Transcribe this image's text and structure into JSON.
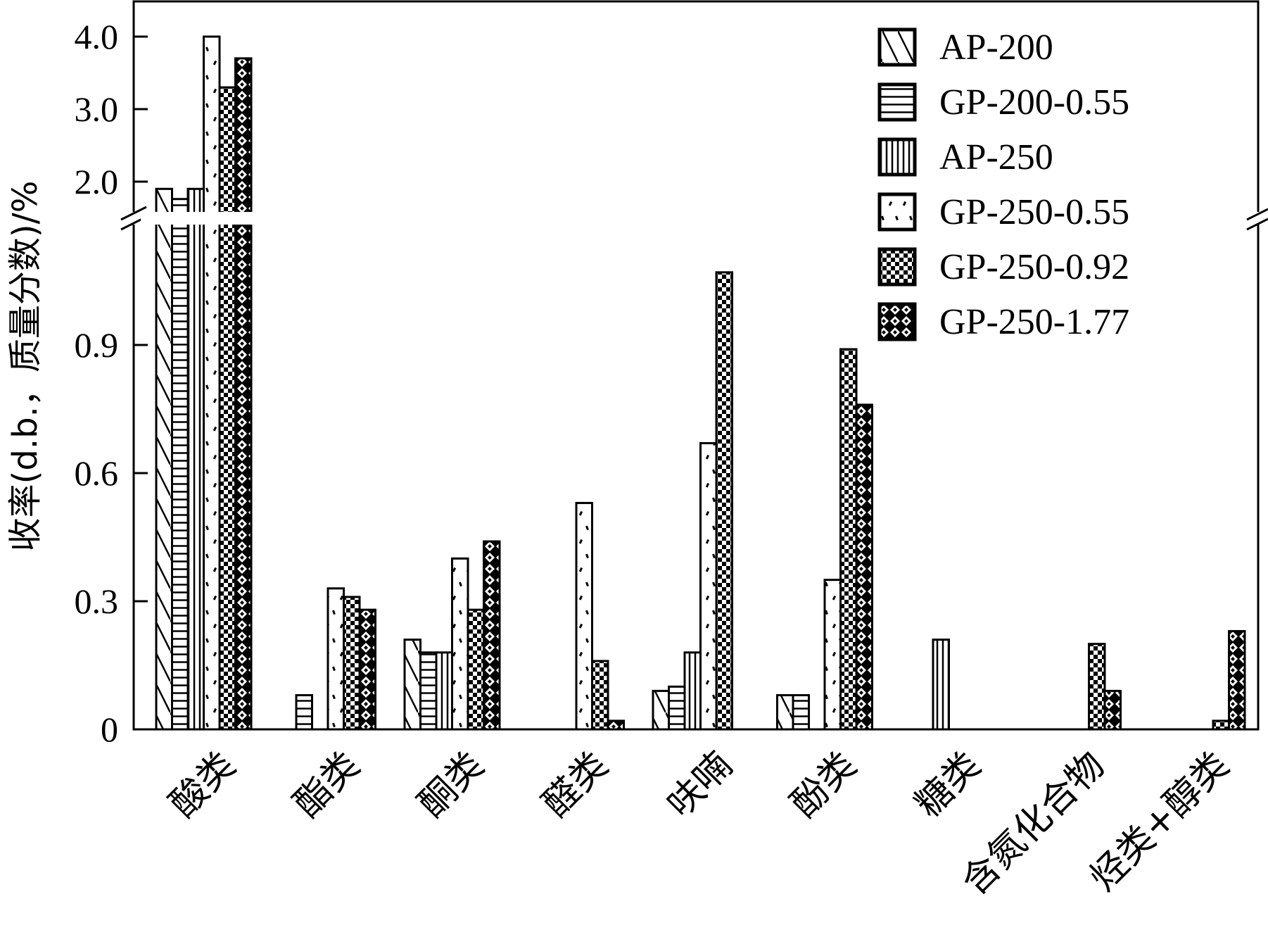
{
  "chart_data": {
    "type": "bar",
    "ylabel": "收率(d.b.，质量分数)/%",
    "xlabel": "",
    "y_axis_break": {
      "lower_range": [
        0,
        1.2
      ],
      "upper_range": [
        1.6,
        4.2
      ]
    },
    "yticks_lower": [
      "0",
      "0.3",
      "0.6",
      "0.9"
    ],
    "yticks_upper": [
      "2.0",
      "3.0",
      "4.0"
    ],
    "categories": [
      "酸类",
      "酯类",
      "酮类",
      "醛类",
      "呋喃",
      "酚类",
      "糖类",
      "含氮化合物",
      "烃类+醇类"
    ],
    "series": [
      {
        "name": "AP-200",
        "pattern": "diagonal",
        "values": [
          1.9,
          0,
          0.21,
          0,
          0.09,
          0.08,
          0,
          0,
          0
        ]
      },
      {
        "name": "GP-200-0.55",
        "pattern": "horizontal",
        "values": [
          1.76,
          0.08,
          0.18,
          0,
          0.1,
          0.08,
          0,
          0,
          0
        ]
      },
      {
        "name": "AP-250",
        "pattern": "vertical",
        "values": [
          1.9,
          0,
          0.18,
          0,
          0.18,
          0,
          0.21,
          0,
          0
        ]
      },
      {
        "name": "GP-250-0.55",
        "pattern": "dots",
        "values": [
          4.0,
          0.33,
          0.4,
          0.53,
          0.67,
          0.35,
          0,
          0,
          0
        ]
      },
      {
        "name": "GP-250-0.92",
        "pattern": "checker",
        "values": [
          3.3,
          0.31,
          0.28,
          0.16,
          1.07,
          0.89,
          0,
          0.2,
          0.02
        ]
      },
      {
        "name": "GP-250-1.77",
        "pattern": "diamond",
        "values": [
          3.7,
          0.28,
          0.44,
          0.02,
          0,
          0.76,
          0,
          0.09,
          0.23
        ]
      }
    ],
    "legend_position": "top-right",
    "grid": false
  }
}
